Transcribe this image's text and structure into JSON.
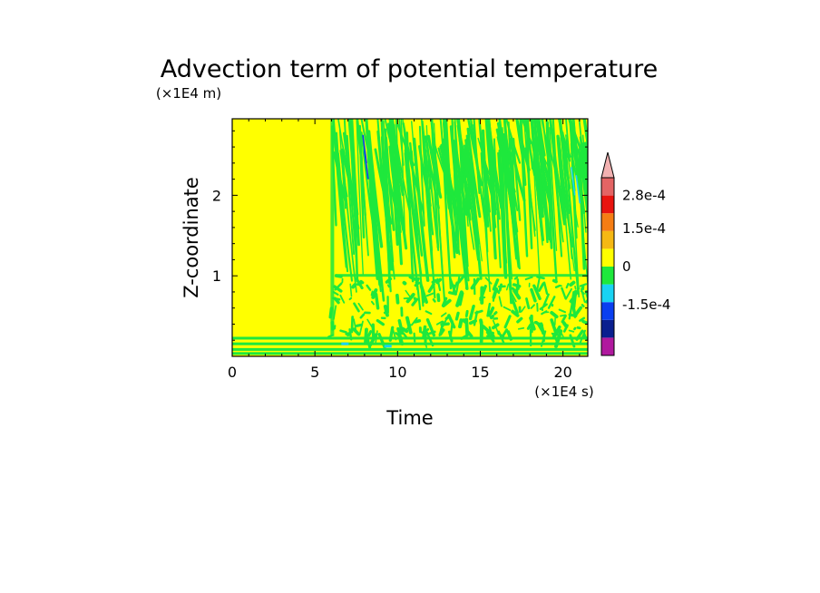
{
  "chart_data": {
    "type": "heatmap",
    "title": "Advection term of potential temperature",
    "xlabel": "Time",
    "ylabel": "Z-coordinate",
    "x_unit": "(×1E4 s)",
    "y_unit": "(×1E4 m)",
    "xlim": [
      0,
      21.5
    ],
    "ylim": [
      0,
      2.95
    ],
    "x_ticks": [
      "0",
      "5",
      "10",
      "15",
      "20"
    ],
    "x_tick_values": [
      0,
      5,
      10,
      15,
      20
    ],
    "y_ticks": [
      "1",
      "2"
    ],
    "y_tick_values": [
      1,
      2
    ],
    "colorbar": {
      "labels": [
        "2.8e-4",
        "1.5e-4",
        "0",
        "-1.5e-4"
      ],
      "label_levels": [
        0.00028,
        0.00015,
        0,
        -0.00015
      ],
      "levels": [
        -0.00028,
        -0.00021,
        -0.00014,
        -7e-05,
        0,
        7e-05,
        0.00014,
        0.00021,
        0.00028
      ],
      "colors_bottom_to_top": [
        "#b0199e",
        "#0a1f8f",
        "#0a3ff0",
        "#19d3f3",
        "#1ee83c",
        "#ffff00",
        "#f5b814",
        "#f57d14",
        "#e8140f",
        "#e36464"
      ],
      "extend_top_color": "#f2b1b1"
    },
    "field_description_regions": [
      {
        "x_range": [
          0,
          6
        ],
        "z_range": [
          0.2,
          2.95
        ],
        "dominant_value": "0 to 7e-5 (yellow)"
      },
      {
        "x_range": [
          0,
          21.5
        ],
        "z_range": [
          0,
          0.2
        ],
        "dominant_value": "alternating yellow/green bands"
      },
      {
        "x_range": [
          6,
          21.5
        ],
        "z_range": [
          0,
          2.95
        ],
        "dominant_value": "mixed green/yellow streaks, slanted"
      }
    ],
    "grid": false
  }
}
